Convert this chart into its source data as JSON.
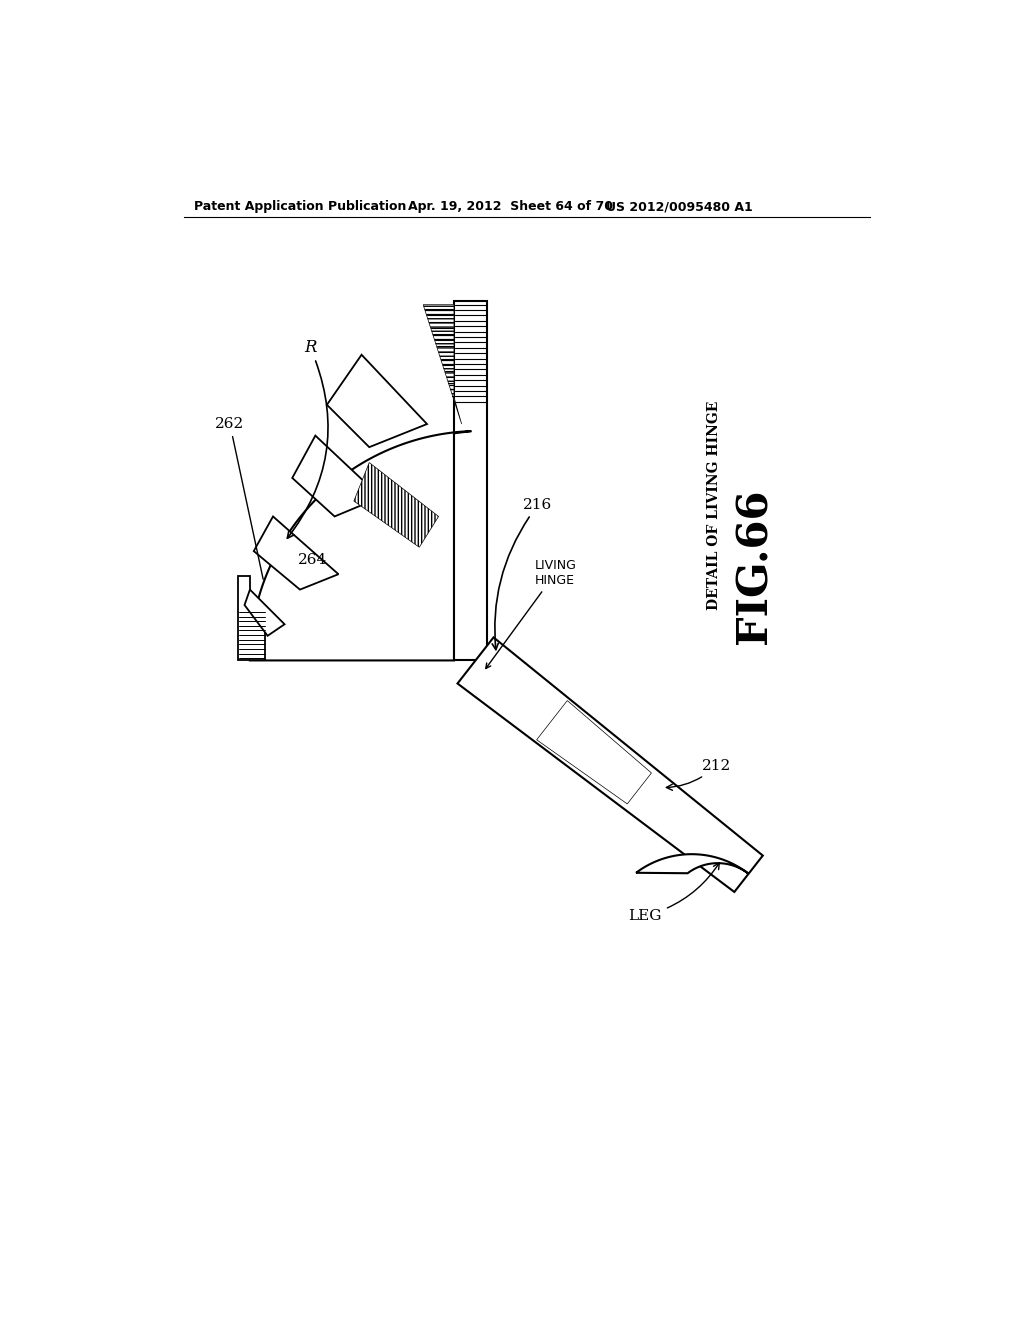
{
  "bg_color": "#ffffff",
  "header_left": "Patent Application Publication",
  "header_mid": "Apr. 19, 2012  Sheet 64 of 70",
  "header_right": "US 2012/0095480 A1",
  "fig_label": "FIG.66",
  "fig_title": "DETAIL OF LIVING HINGE",
  "label_R": "R",
  "label_262": "262",
  "label_264": "264",
  "label_216": "216",
  "label_212": "212",
  "label_living_hinge": "LIVING\nHINGE",
  "label_leg": "LEG",
  "line_color": "#000000"
}
